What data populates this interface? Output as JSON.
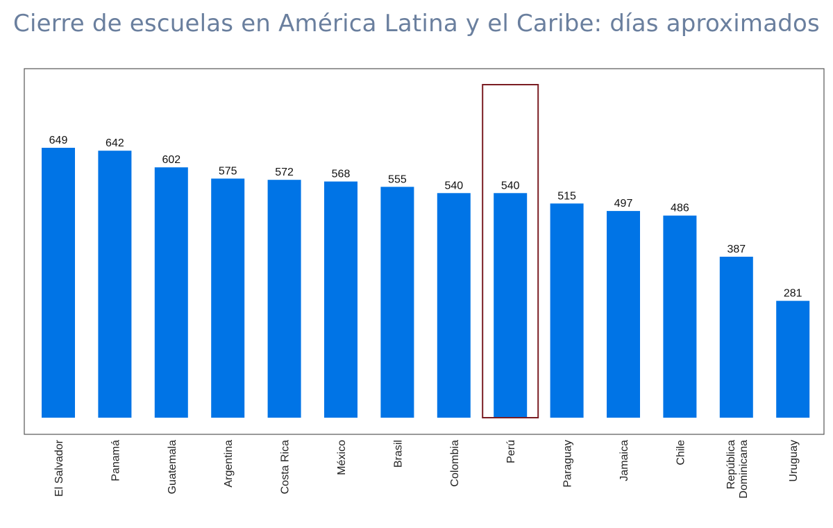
{
  "title": "Cierre de escuelas en América Latina y el Caribe: días aproximados",
  "chart_data": {
    "type": "bar",
    "title": "Cierre de escuelas en América Latina y el Caribe: días aproximados",
    "categories": [
      [
        "El Salvador"
      ],
      [
        "Panamá"
      ],
      [
        "Guatemala"
      ],
      [
        "Argentina"
      ],
      [
        "Costa Rica"
      ],
      [
        "México"
      ],
      [
        "Brasil"
      ],
      [
        "Colombia"
      ],
      [
        "Perú"
      ],
      [
        "Paraguay"
      ],
      [
        "Jamaica"
      ],
      [
        "Chile"
      ],
      [
        "República",
        "Dominicana"
      ],
      [
        "Uruguay"
      ]
    ],
    "values": [
      649,
      642,
      602,
      575,
      572,
      568,
      555,
      540,
      540,
      515,
      497,
      486,
      387,
      281
    ],
    "highlight_index": 8,
    "ylim": [
      0,
      810
    ],
    "xlabel": "",
    "ylabel": "",
    "grid": false,
    "bar_color": "#0074e6",
    "highlight_color": "#7a1c22",
    "frame_color": "#555555"
  }
}
